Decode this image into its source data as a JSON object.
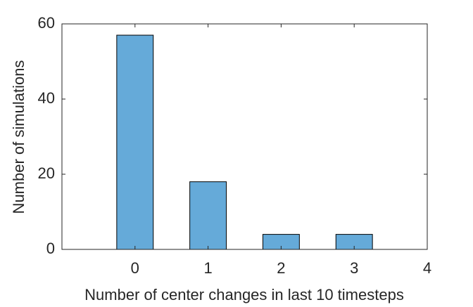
{
  "chart_data": {
    "type": "bar",
    "x_label": "Number of center changes in last 10 timesteps",
    "y_label": "Number of simulations",
    "x": [
      0,
      1,
      2,
      3
    ],
    "values": [
      57,
      18,
      4,
      4
    ],
    "color": "#65aad9",
    "bar_width": 0.5,
    "xlim": [
      -1,
      4
    ],
    "xticks": [
      0,
      1,
      2,
      3,
      4
    ],
    "ylim": [
      0,
      60
    ],
    "yticks": [
      0,
      20,
      40,
      60
    ],
    "box": true
  }
}
